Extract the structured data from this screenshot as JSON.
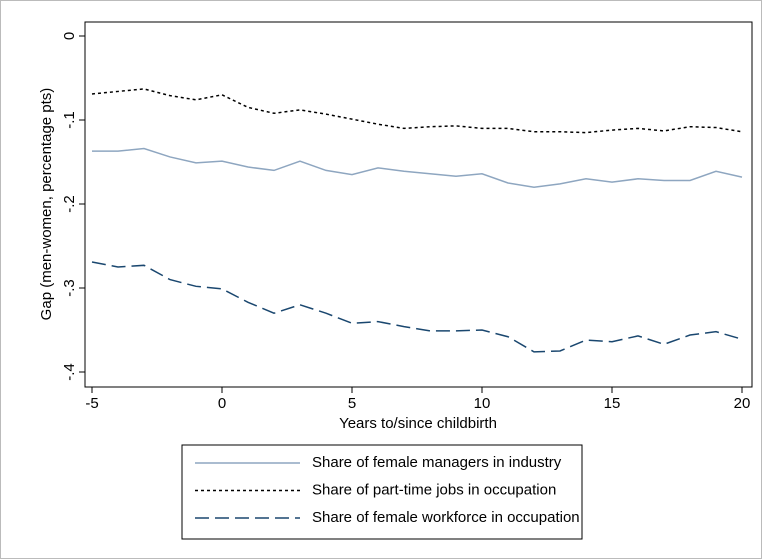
{
  "chart_data": {
    "type": "line",
    "ylabel": "Gap (men-women, percentage pts)",
    "xlabel": "Years to/since childbirth",
    "x": [
      -5,
      -4,
      -3,
      -2,
      -1,
      0,
      1,
      2,
      3,
      4,
      5,
      6,
      7,
      8,
      9,
      10,
      11,
      12,
      13,
      14,
      15,
      16,
      17,
      18,
      19,
      20
    ],
    "series": [
      {
        "name": "Share of female managers in industry",
        "color": "#8ea6c0",
        "dash": "solid",
        "values": [
          -0.137,
          -0.137,
          -0.134,
          -0.144,
          -0.151,
          -0.149,
          -0.156,
          -0.16,
          -0.149,
          -0.16,
          -0.165,
          -0.157,
          -0.161,
          -0.164,
          -0.167,
          -0.164,
          -0.175,
          -0.18,
          -0.176,
          -0.17,
          -0.174,
          -0.17,
          -0.172,
          -0.172,
          -0.161,
          -0.168
        ]
      },
      {
        "name": "Share of part-time jobs in occupation",
        "color": "#000000",
        "dash": "dotted",
        "values": [
          -0.069,
          -0.066,
          -0.063,
          -0.071,
          -0.076,
          -0.07,
          -0.085,
          -0.092,
          -0.088,
          -0.093,
          -0.099,
          -0.105,
          -0.11,
          -0.108,
          -0.107,
          -0.11,
          -0.11,
          -0.114,
          -0.114,
          -0.115,
          -0.112,
          -0.11,
          -0.113,
          -0.108,
          -0.109,
          -0.114
        ]
      },
      {
        "name": "Share of female workforce in occupation",
        "color": "#1a476f",
        "dash": "dashed",
        "values": [
          -0.269,
          -0.275,
          -0.273,
          -0.29,
          -0.298,
          -0.301,
          -0.317,
          -0.33,
          -0.32,
          -0.33,
          -0.342,
          -0.34,
          -0.346,
          -0.351,
          -0.351,
          -0.35,
          -0.358,
          -0.376,
          -0.375,
          -0.362,
          -0.364,
          -0.357,
          -0.367,
          -0.356,
          -0.352,
          -0.361
        ]
      }
    ],
    "xlim": [
      -5,
      20
    ],
    "xticks": [
      -5,
      0,
      5,
      10,
      15,
      20
    ],
    "ylim": [
      -0.4,
      0
    ],
    "yticks": [
      {
        "value": 0,
        "label": "0"
      },
      {
        "value": -0.1,
        "label": "-.1"
      },
      {
        "value": -0.2,
        "label": "-.2"
      },
      {
        "value": -0.3,
        "label": "-.3"
      },
      {
        "value": -0.4,
        "label": "-.4"
      }
    ],
    "grid": false,
    "legend": "bottom"
  }
}
